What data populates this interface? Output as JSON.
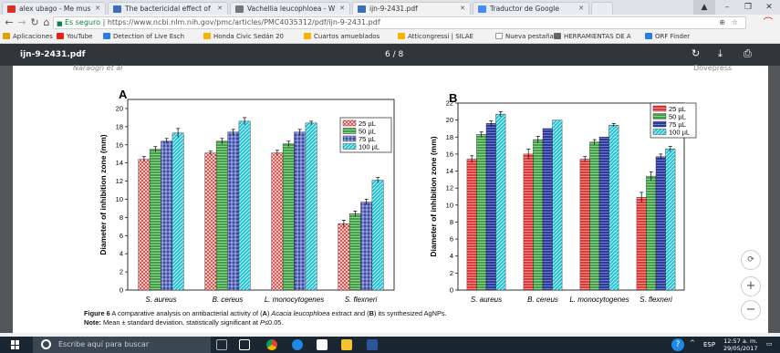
{
  "tabs": [
    {
      "label": "alex ubago - Me mus",
      "fav": "#d93025"
    },
    {
      "label": "The bactericidal effect of",
      "fav": "#3d6fb6"
    },
    {
      "label": "Vachellia leucophloea - W",
      "fav": "#777777"
    },
    {
      "label": "ijn-9-2431.pdf",
      "fav": "#3d6fb6"
    },
    {
      "label": "Traductor de Google",
      "fav": "#4a8af4"
    }
  ],
  "address": {
    "secure_label": "Es seguro",
    "url": "https://www.ncbi.nlm.nih.gov/pmc/articles/PMC4035312/pdf/ijn-9-2431.pdf"
  },
  "bookmarks": [
    {
      "label": "Aplicaciones",
      "color": "#e2a100"
    },
    {
      "label": "YouTube",
      "color": "#e62117"
    },
    {
      "label": "Detection of Live Esch",
      "color": "#2a7de1"
    },
    {
      "label": "Honda Civic Sedán 20",
      "color": "#f4b400"
    },
    {
      "label": "Cuartos amueblados",
      "color": "#f4b400"
    },
    {
      "label": "Atticongressi | SILAE",
      "color": "#f4b400"
    },
    {
      "label": "Nueva pestaña",
      "color": "#999999"
    },
    {
      "label": "HERRAMIENTAS DE A",
      "color": "#666666"
    },
    {
      "label": "ORF Finder",
      "color": "#2a7de1"
    }
  ],
  "pdf": {
    "title": "ijn-9-2431.pdf",
    "page_indicator": "6 / 8"
  },
  "running_head": "Naraogn et al",
  "running_head_right": "Dovepress",
  "chart_data": [
    {
      "type": "bar",
      "panel_label": "A",
      "categories": [
        "S. aureus",
        "B. cereus",
        "L. monocytogenes",
        "S. flexneri"
      ],
      "ylabel": "Diameter of inhibition zone (mm)",
      "ylim": [
        0,
        21
      ],
      "yticks": [
        0,
        2,
        4,
        6,
        8,
        10,
        12,
        14,
        16,
        18,
        20
      ],
      "legend_position": "top-right",
      "series": [
        {
          "name": "25 µL",
          "values": [
            14.4,
            15.1,
            15.1,
            7.3
          ],
          "errors": [
            0.3,
            0.2,
            0.3,
            0.4
          ],
          "color": "#e53935",
          "pattern": "cross"
        },
        {
          "name": "50 µL",
          "values": [
            15.5,
            16.4,
            16.1,
            8.4
          ],
          "errors": [
            0.3,
            0.3,
            0.3,
            0.3
          ],
          "color": "#43a047",
          "pattern": "hlines"
        },
        {
          "name": "75 µL",
          "values": [
            16.4,
            17.4,
            17.4,
            9.7
          ],
          "errors": [
            0.3,
            0.3,
            0.3,
            0.3
          ],
          "color": "#3949ab",
          "pattern": "grid"
        },
        {
          "name": "100 µL",
          "values": [
            17.3,
            18.6,
            18.4,
            12.1
          ],
          "errors": [
            0.5,
            0.4,
            0.2,
            0.3
          ],
          "color": "#26c6da",
          "pattern": "diag"
        }
      ]
    },
    {
      "type": "bar",
      "panel_label": "B",
      "categories": [
        "S. aureus",
        "B. cereus",
        "L. monocytogenes",
        "S. flexneri"
      ],
      "ylabel": "Diameter of inhibition zone (mm)",
      "ylim": [
        0,
        22
      ],
      "yticks": [
        0,
        2,
        4,
        6,
        8,
        10,
        12,
        14,
        16,
        18,
        20,
        22
      ],
      "legend_position": "top-right",
      "series": [
        {
          "name": "25 µL",
          "values": [
            15.4,
            16.0,
            15.4,
            10.9
          ],
          "errors": [
            0.4,
            0.6,
            0.3,
            0.6
          ],
          "color": "#e53935",
          "pattern": "hlines"
        },
        {
          "name": "50 µL",
          "values": [
            18.3,
            17.7,
            17.4,
            13.4
          ],
          "errors": [
            0.3,
            0.4,
            0.3,
            0.5
          ],
          "color": "#43a047",
          "pattern": "hlines"
        },
        {
          "name": "75 µL",
          "values": [
            19.6,
            19.0,
            18.0,
            15.7
          ],
          "errors": [
            0.3,
            0.0,
            0.0,
            0.3
          ],
          "color": "#2c3aa0",
          "pattern": "hlines"
        },
        {
          "name": "100 µL",
          "values": [
            20.7,
            20.0,
            19.4,
            16.6
          ],
          "errors": [
            0.3,
            0.0,
            0.2,
            0.3
          ],
          "color": "#26c6da",
          "pattern": "diag"
        }
      ]
    }
  ],
  "caption": {
    "prefix": "Figure 6",
    "part1": " A comparative analysis on antibacterial activity of (",
    "a": "A",
    "part2": ") ",
    "species": "Acacia leucophloea",
    "part3": " extract and (",
    "b": "B",
    "part4": ") its synthesized AgNPs.",
    "note_label": "Note:",
    "note_text": " Mean ± standard deviation, statistically significant at ",
    "note_p": "P",
    "note_end": "≤0.05."
  },
  "taskbar": {
    "search_placeholder": "Escribe aquí para buscar",
    "lang": "ESP",
    "time": "12:57 a. m.",
    "date": "29/05/2017"
  }
}
